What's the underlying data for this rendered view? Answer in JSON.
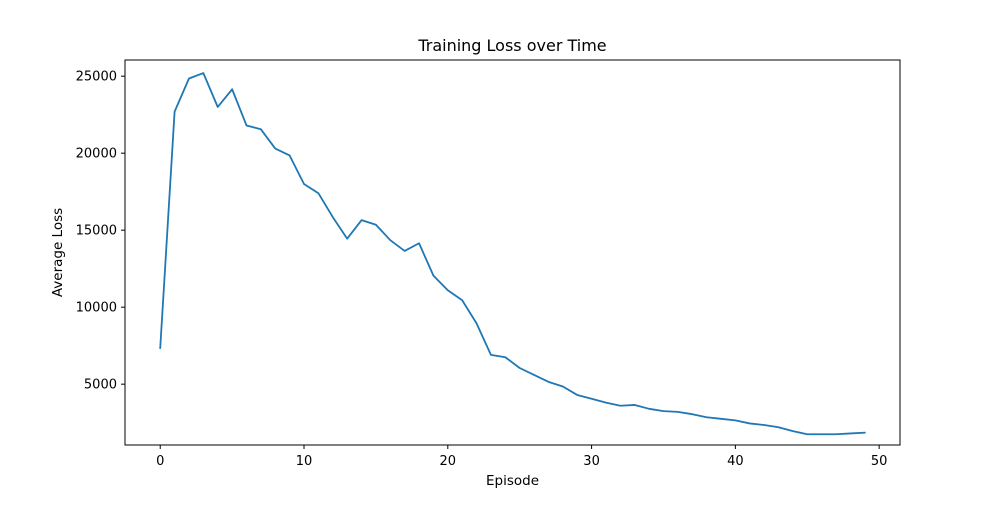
{
  "chart_data": {
    "type": "line",
    "title": "Training Loss over Time",
    "xlabel": "Episode",
    "ylabel": "Average Loss",
    "xlim": [
      -2.45,
      51.45
    ],
    "ylim": [
      1050,
      26050
    ],
    "xticks": [
      0,
      10,
      20,
      30,
      40,
      50
    ],
    "yticks": [
      5000,
      10000,
      15000,
      20000,
      25000
    ],
    "grid": false,
    "legend": "none",
    "series": [
      {
        "color": "#1f77b4",
        "x": [
          0,
          1,
          2,
          3,
          4,
          5,
          6,
          7,
          8,
          9,
          10,
          11,
          12,
          13,
          14,
          15,
          16,
          17,
          18,
          19,
          20,
          21,
          22,
          23,
          24,
          25,
          26,
          27,
          28,
          29,
          30,
          31,
          32,
          33,
          34,
          35,
          36,
          37,
          38,
          39,
          40,
          41,
          42,
          43,
          44,
          45,
          46,
          47,
          48,
          49
        ],
        "y": [
          7350,
          22700,
          24850,
          25200,
          23000,
          24150,
          21800,
          21550,
          20300,
          19850,
          18000,
          17400,
          15850,
          14450,
          15650,
          15350,
          14350,
          13650,
          14150,
          12050,
          11100,
          10450,
          8950,
          6900,
          6750,
          6050,
          5600,
          5150,
          4850,
          4300,
          4050,
          3800,
          3600,
          3650,
          3400,
          3250,
          3200,
          3050,
          2850,
          2750,
          2650,
          2450,
          2350,
          2200,
          1950,
          1750,
          1750,
          1750,
          1800,
          1850
        ]
      }
    ]
  }
}
